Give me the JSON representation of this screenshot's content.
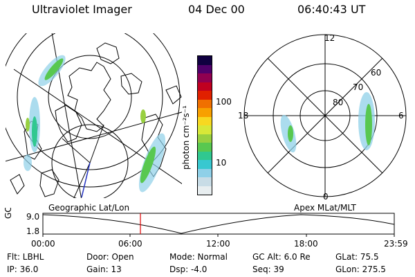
{
  "header": {
    "title": "Ultraviolet Imager",
    "date": "04 Dec 00",
    "time": "06:40:43 UT"
  },
  "colorbar": {
    "unit_label": "photon cm⁻²s⁻¹",
    "tick_100": "100",
    "tick_10": "10",
    "colors": [
      "#e8eef0",
      "#c8dce6",
      "#8fd0e8",
      "#38c8d0",
      "#30c890",
      "#58c850",
      "#98d040",
      "#d8e838",
      "#f8d820",
      "#f8a000",
      "#f07000",
      "#e02000",
      "#c00020",
      "#900050",
      "#50006a",
      "#100040"
    ]
  },
  "polar_plot": {
    "mlt_labels": {
      "top": "12",
      "left": "18",
      "right": "6",
      "bottom": "0"
    },
    "lat_labels": [
      "60",
      "70",
      "80"
    ]
  },
  "map_labels": {
    "left": "Geographic Lat/Lon",
    "right": "Apex MLat/MLT"
  },
  "timeline": {
    "ylabel": "GC Alt",
    "ytick_high": "9.0",
    "ytick_low": "1.8",
    "xticks": [
      "00:00",
      "06:00",
      "12:00",
      "18:00",
      "23:59"
    ],
    "current_time": "06:40"
  },
  "footer": [
    [
      "Flt: LBHL",
      "Door: Open",
      "Mode: Normal",
      "GC Alt: 6.0 Re",
      "GLat:  75.5"
    ],
    [
      "IP: 36.0",
      "Gain: 13",
      "Dsp:    -4.0",
      "Seq: 39",
      "GLon: 275.5"
    ]
  ]
}
